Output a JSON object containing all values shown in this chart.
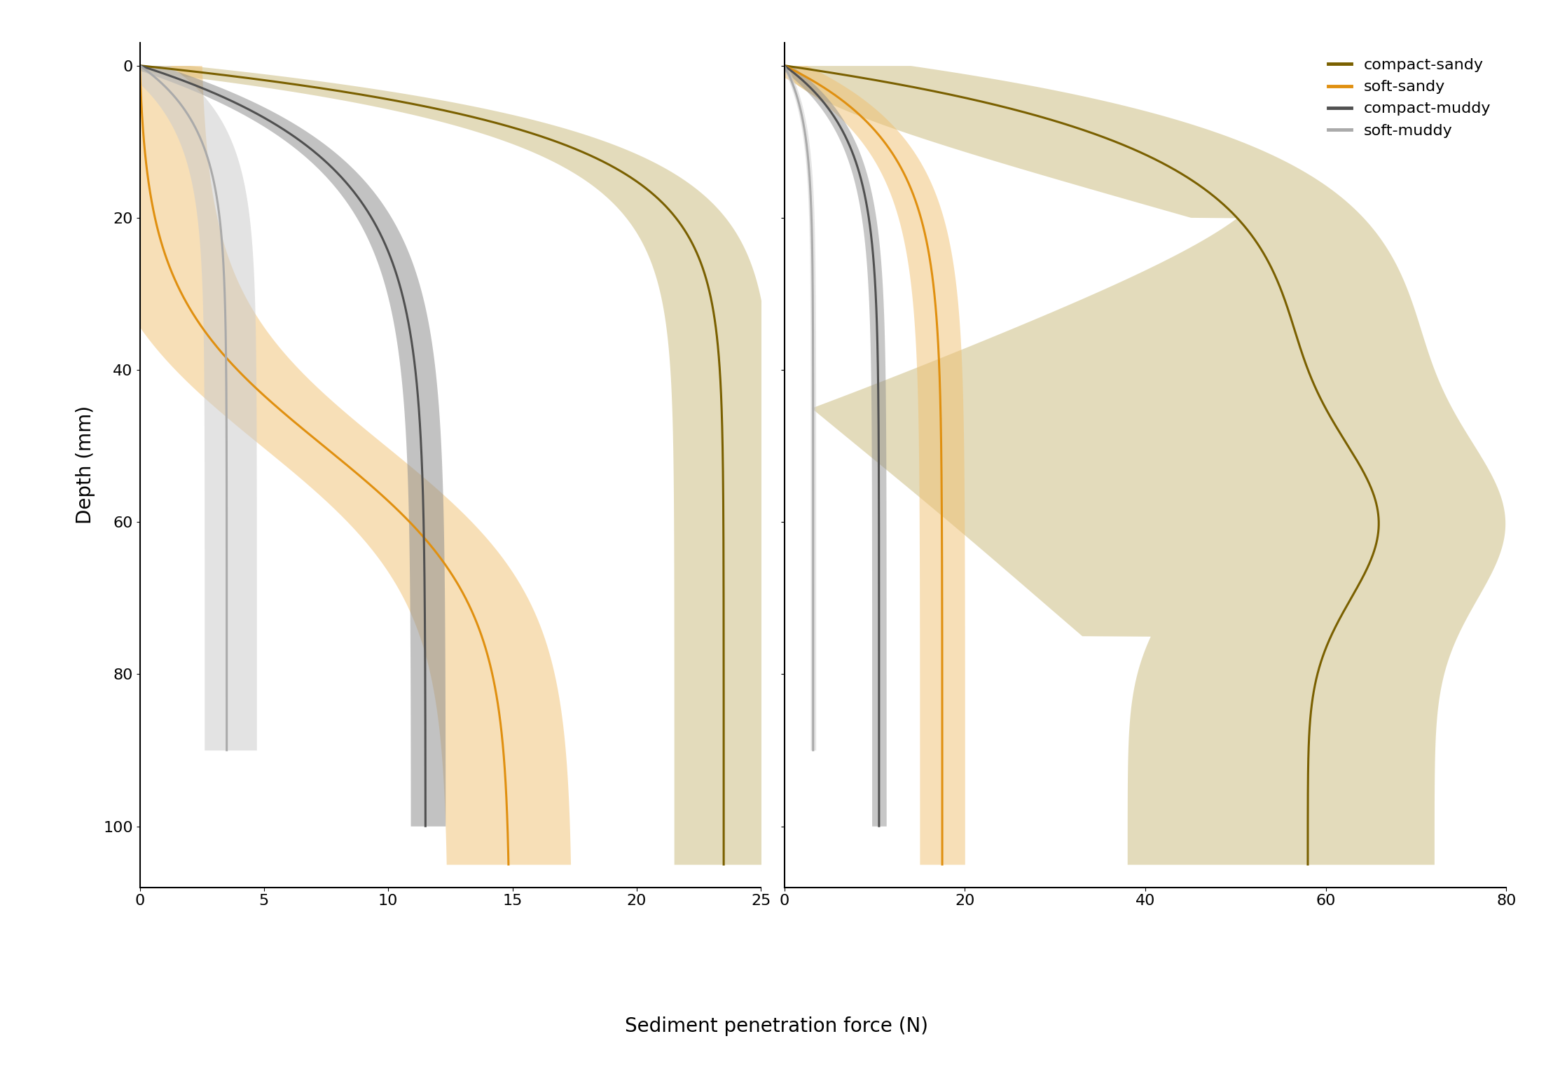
{
  "xlabel": "Sediment penetration force (N)",
  "ylabel": "Depth (mm)",
  "left_xlim": [
    0,
    25
  ],
  "right_xlim": [
    0,
    80
  ],
  "ylim": [
    108,
    -3
  ],
  "left_xticks": [
    0,
    5,
    10,
    15,
    20,
    25
  ],
  "right_xticks": [
    0,
    20,
    40,
    60,
    80
  ],
  "yticks": [
    0,
    20,
    40,
    60,
    80,
    100
  ],
  "colors": {
    "compact_sandy": "#7a6000",
    "soft_sandy": "#e09010",
    "compact_muddy": "#505050",
    "soft_muddy": "#aaaaaa"
  },
  "fill_colors": {
    "compact_sandy": "#c8b878",
    "soft_sandy": "#f0c070",
    "compact_muddy": "#909090",
    "soft_muddy": "#cccccc"
  },
  "legend_labels": [
    "compact-sandy",
    "soft-sandy",
    "compact-muddy",
    "soft-muddy"
  ],
  "legend_colors": [
    "#7a6000",
    "#e09010",
    "#505050",
    "#aaaaaa"
  ],
  "figsize": [
    22.17,
    15.26
  ],
  "dpi": 100
}
